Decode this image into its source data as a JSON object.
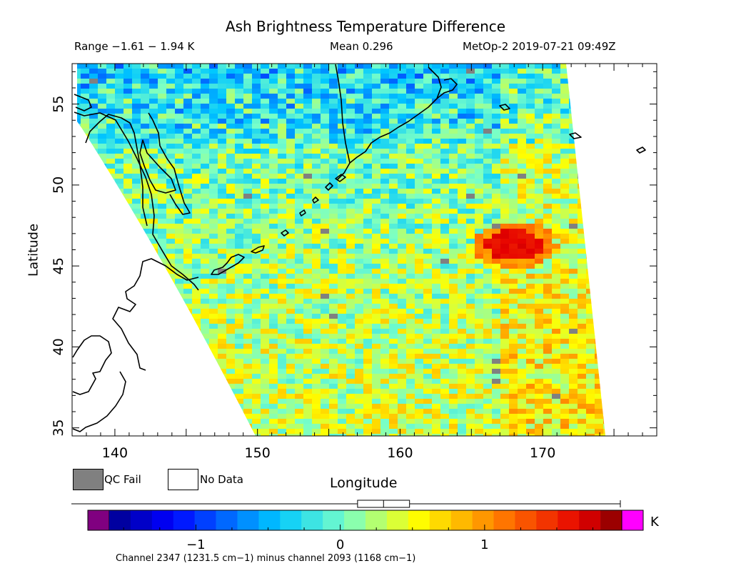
{
  "title": "Ash Brightness Temperature Difference",
  "range_text": "Range −1.61 − 1.94 K",
  "mean_text": "Mean 0.296",
  "meta_text": "MetOp-2 2019-07-21 09:49Z",
  "axes": {
    "xlabel": "Longitude",
    "ylabel": "Latitude",
    "x_ticks": [
      "140",
      "150",
      "160",
      "170"
    ],
    "y_ticks": [
      "35",
      "40",
      "45",
      "50",
      "55"
    ],
    "lon_range": [
      137,
      178
    ],
    "lat_range": [
      34.5,
      57.5
    ]
  },
  "legend": {
    "qc_fail": "QC Fail",
    "no_data": "No Data",
    "qc_fail_color": "#808080",
    "no_data_color": "#ffffff"
  },
  "colorbar": {
    "unit": "K",
    "ticks": [
      "−1",
      "0",
      "1"
    ],
    "min": -1.6,
    "max": 1.95,
    "under_color": "#800080",
    "over_color": "#ff00ff",
    "box_whisker": {
      "min": -1.61,
      "q1": 0.12,
      "median": 0.3,
      "q3": 0.48,
      "max": 1.94
    }
  },
  "footnote": "Channel 2347 (1231.5 cm−1) minus channel 2093 (1168 cm−1)",
  "map_features": {
    "ash_plume_center": [
      168,
      46.3
    ],
    "ash_plume_value": 1.7,
    "coastline_color": "#000000"
  }
}
